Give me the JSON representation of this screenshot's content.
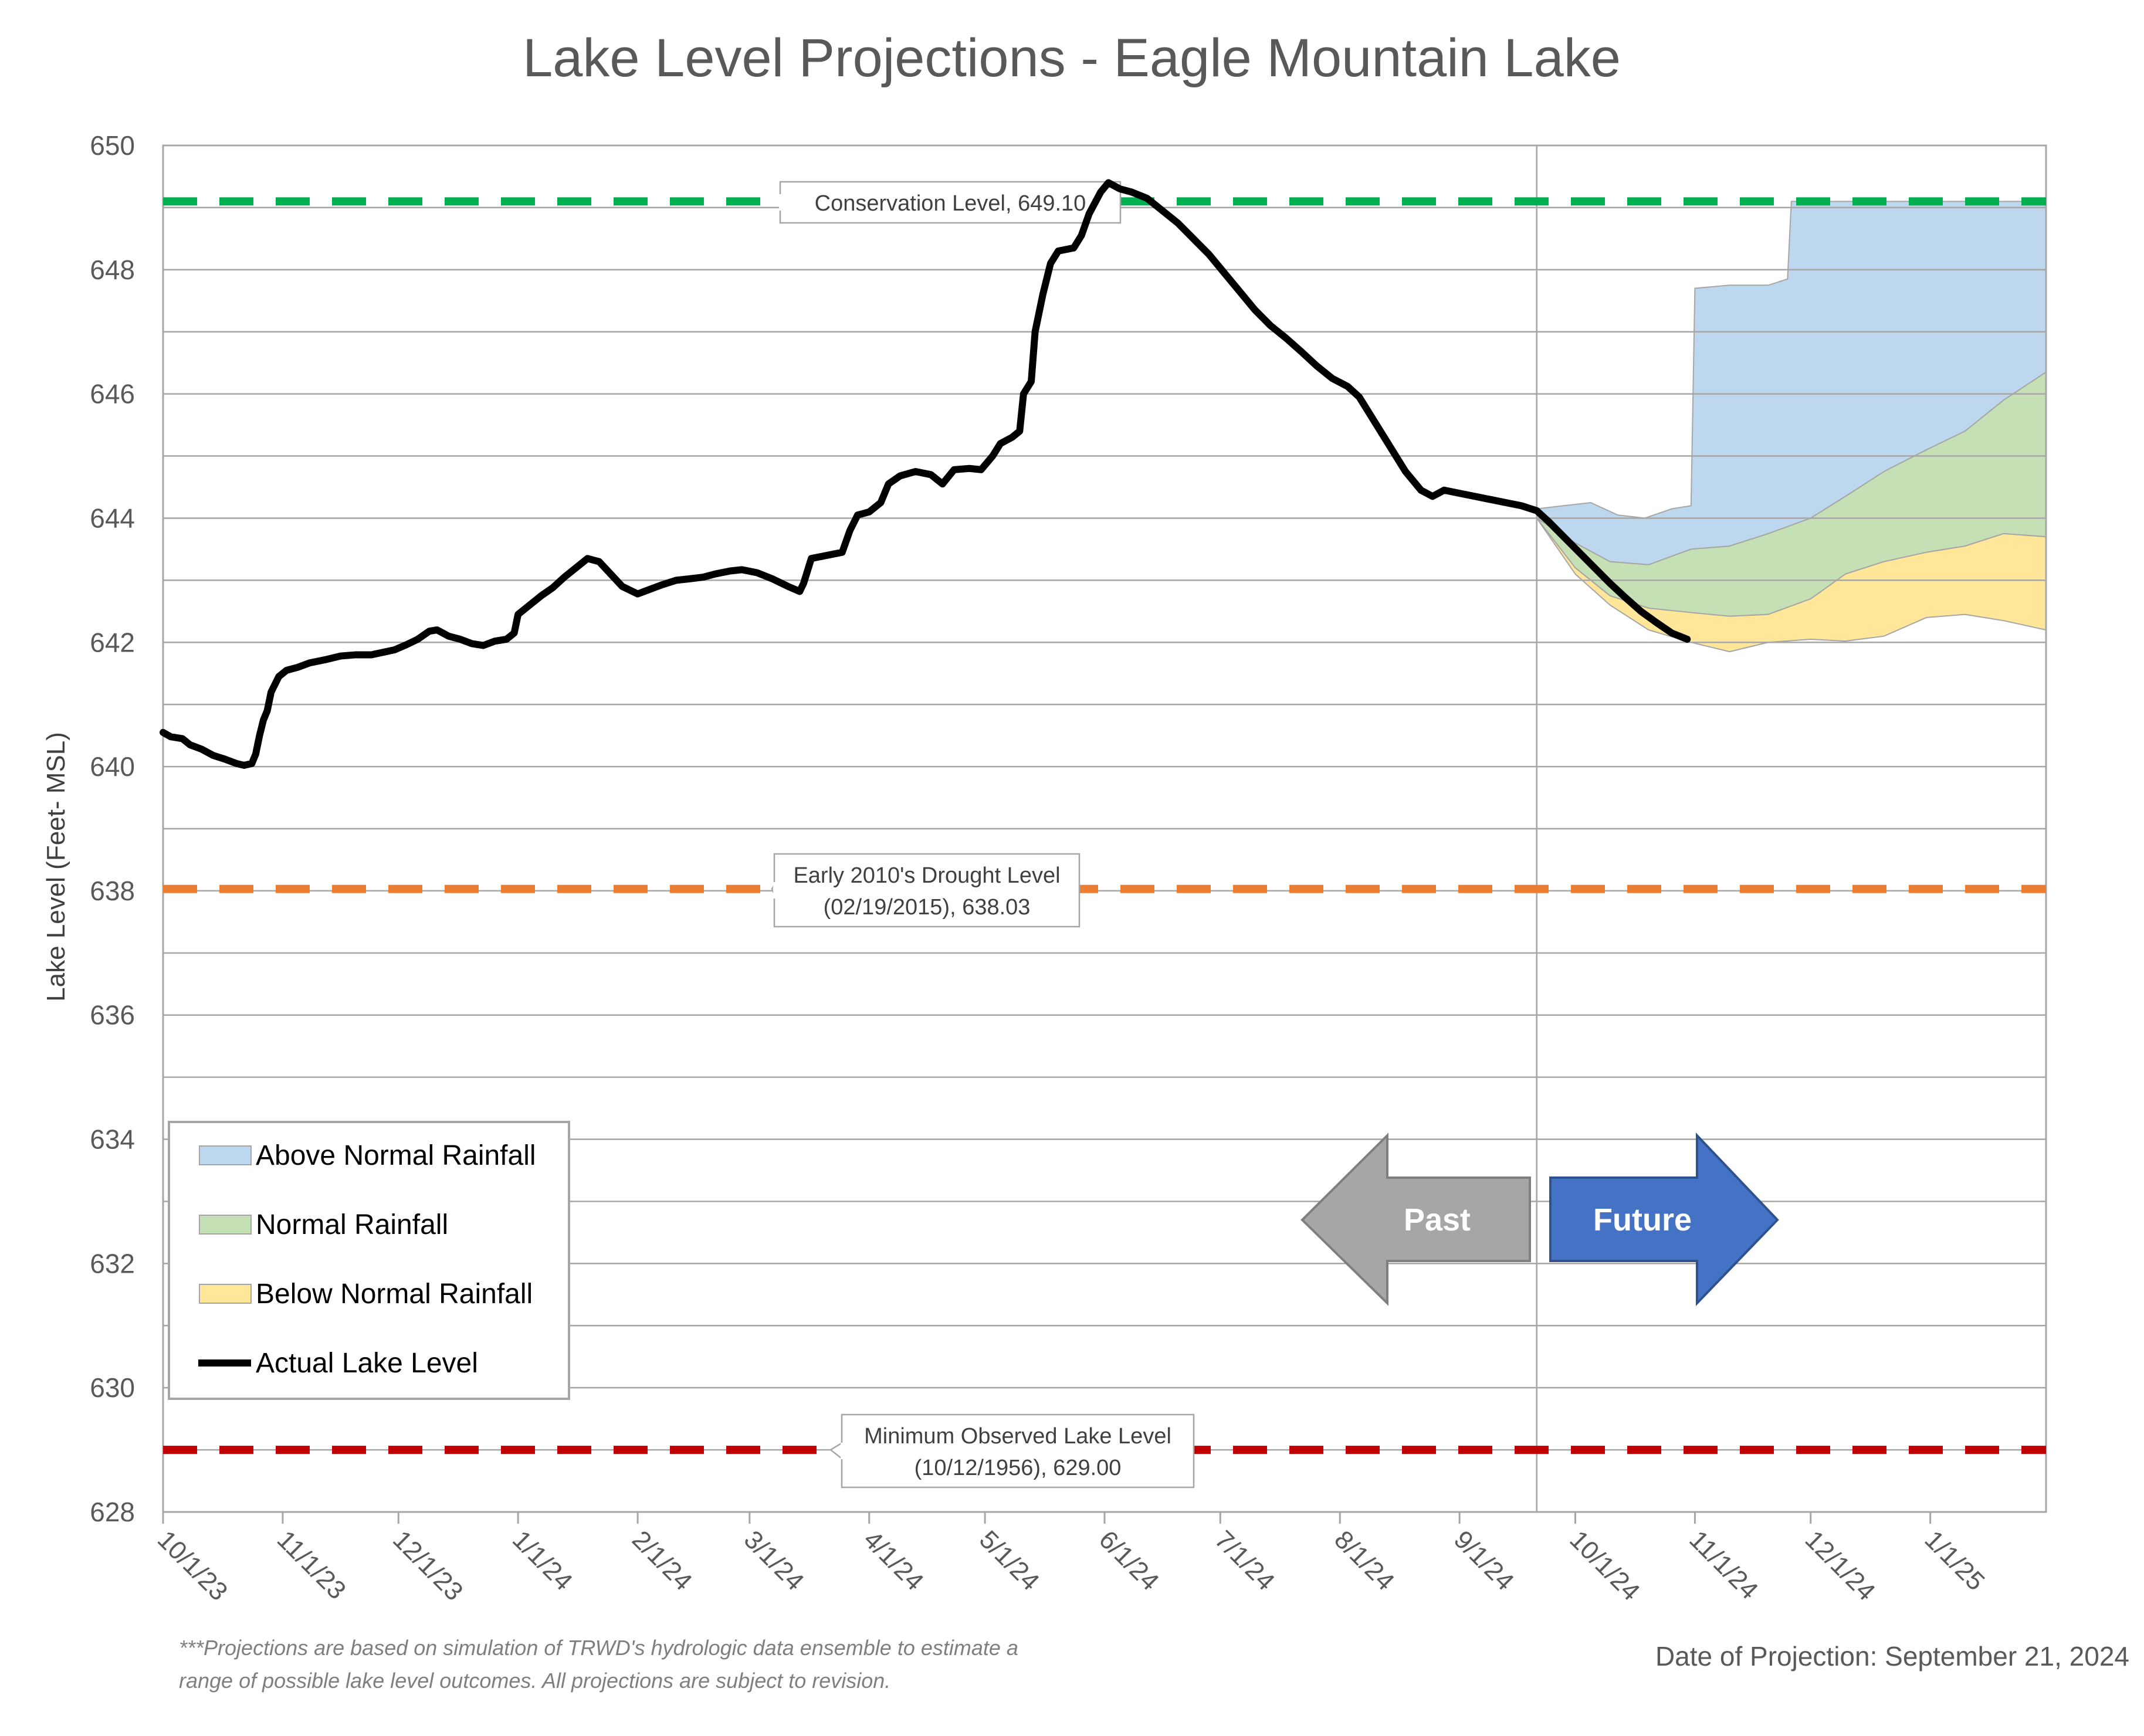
{
  "chart_data": {
    "type": "area",
    "title": "Lake Level Projections - Eagle Mountain Lake",
    "ylabel": "Lake Level (Feet- MSL)",
    "xlabel": "",
    "ylim": [
      628,
      650
    ],
    "yticks": [
      628,
      630,
      632,
      634,
      636,
      638,
      640,
      642,
      644,
      646,
      648,
      650
    ],
    "xlim": [
      "2023-10-01",
      "2025-01-31"
    ],
    "xticks": [
      {
        "date": "2023-10-01",
        "label": "10/1/23"
      },
      {
        "date": "2023-11-01",
        "label": "11/1/23"
      },
      {
        "date": "2023-12-01",
        "label": "12/1/23"
      },
      {
        "date": "2024-01-01",
        "label": "1/1/24"
      },
      {
        "date": "2024-02-01",
        "label": "2/1/24"
      },
      {
        "date": "2024-03-01",
        "label": "3/1/24"
      },
      {
        "date": "2024-04-01",
        "label": "4/1/24"
      },
      {
        "date": "2024-05-01",
        "label": "5/1/24"
      },
      {
        "date": "2024-06-01",
        "label": "6/1/24"
      },
      {
        "date": "2024-07-01",
        "label": "7/1/24"
      },
      {
        "date": "2024-08-01",
        "label": "8/1/24"
      },
      {
        "date": "2024-09-01",
        "label": "9/1/24"
      },
      {
        "date": "2024-10-01",
        "label": "10/1/24"
      },
      {
        "date": "2024-11-01",
        "label": "11/1/24"
      },
      {
        "date": "2024-12-01",
        "label": "12/1/24"
      },
      {
        "date": "2025-01-01",
        "label": "1/1/25"
      }
    ],
    "grid": true,
    "projection_date": "2024-09-21",
    "reference_lines": [
      {
        "name": "conservation",
        "value": 649.1,
        "label": "Conservation Level, 649.10",
        "color": "#00b050"
      },
      {
        "name": "drought",
        "value": 638.03,
        "label": "Early 2010's Drought Level (02/19/2015), 638.03",
        "label_lines": [
          "Early 2010's Drought Level",
          "(02/19/2015), 638.03"
        ],
        "color": "#ed7d31"
      },
      {
        "name": "minimum",
        "value": 629.0,
        "label": "Minimum Observed Lake Level (10/12/1956), 629.00",
        "label_lines": [
          "Minimum Observed Lake Level",
          "(10/12/1956), 629.00"
        ],
        "color": "#c00000"
      }
    ],
    "legend": {
      "position": "bottom-left",
      "items": [
        {
          "label": "Above Normal Rainfall",
          "color": "#bdd7ee",
          "kind": "area"
        },
        {
          "label": "Normal Rainfall",
          "color": "#c5e0b4",
          "kind": "area"
        },
        {
          "label": "Below Normal Rainfall",
          "color": "#ffe699",
          "kind": "area"
        },
        {
          "label": "Actual Lake Level",
          "color": "#000000",
          "kind": "line"
        }
      ]
    },
    "series": [
      {
        "name": "Actual Lake Level",
        "kind": "line",
        "color": "#000000",
        "points": [
          [
            "2023-10-01",
            640.55
          ],
          [
            "2023-10-03",
            640.48
          ],
          [
            "2023-10-06",
            640.45
          ],
          [
            "2023-10-08",
            640.35
          ],
          [
            "2023-10-11",
            640.28
          ],
          [
            "2023-10-14",
            640.18
          ],
          [
            "2023-10-17",
            640.12
          ],
          [
            "2023-10-20",
            640.05
          ],
          [
            "2023-10-22",
            640.02
          ],
          [
            "2023-10-24",
            640.05
          ],
          [
            "2023-10-25",
            640.2
          ],
          [
            "2023-10-26",
            640.5
          ],
          [
            "2023-10-27",
            640.75
          ],
          [
            "2023-10-28",
            640.9
          ],
          [
            "2023-10-29",
            641.2
          ],
          [
            "2023-10-31",
            641.45
          ],
          [
            "2023-11-02",
            641.55
          ],
          [
            "2023-11-05",
            641.6
          ],
          [
            "2023-11-08",
            641.67
          ],
          [
            "2023-11-12",
            641.72
          ],
          [
            "2023-11-16",
            641.78
          ],
          [
            "2023-11-20",
            641.8
          ],
          [
            "2023-11-24",
            641.8
          ],
          [
            "2023-11-27",
            641.84
          ],
          [
            "2023-11-30",
            641.88
          ],
          [
            "2023-12-03",
            641.96
          ],
          [
            "2023-12-06",
            642.05
          ],
          [
            "2023-12-09",
            642.18
          ],
          [
            "2023-12-11",
            642.2
          ],
          [
            "2023-12-14",
            642.1
          ],
          [
            "2023-12-17",
            642.05
          ],
          [
            "2023-12-20",
            641.98
          ],
          [
            "2023-12-23",
            641.95
          ],
          [
            "2023-12-26",
            642.02
          ],
          [
            "2023-12-29",
            642.05
          ],
          [
            "2023-12-31",
            642.15
          ],
          [
            "2024-01-01",
            642.45
          ],
          [
            "2024-01-04",
            642.6
          ],
          [
            "2024-01-07",
            642.75
          ],
          [
            "2024-01-10",
            642.88
          ],
          [
            "2024-01-13",
            643.05
          ],
          [
            "2024-01-16",
            643.2
          ],
          [
            "2024-01-19",
            643.35
          ],
          [
            "2024-01-22",
            643.3
          ],
          [
            "2024-01-25",
            643.1
          ],
          [
            "2024-01-28",
            642.9
          ],
          [
            "2024-02-01",
            642.78
          ],
          [
            "2024-02-04",
            642.85
          ],
          [
            "2024-02-07",
            642.92
          ],
          [
            "2024-02-11",
            643.0
          ],
          [
            "2024-02-14",
            643.02
          ],
          [
            "2024-02-18",
            643.05
          ],
          [
            "2024-02-21",
            643.1
          ],
          [
            "2024-02-25",
            643.15
          ],
          [
            "2024-02-28",
            643.17
          ],
          [
            "2024-03-03",
            643.12
          ],
          [
            "2024-03-07",
            643.02
          ],
          [
            "2024-03-11",
            642.9
          ],
          [
            "2024-03-14",
            642.82
          ],
          [
            "2024-03-15",
            642.95
          ],
          [
            "2024-03-17",
            643.35
          ],
          [
            "2024-03-21",
            643.4
          ],
          [
            "2024-03-25",
            643.45
          ],
          [
            "2024-03-27",
            643.8
          ],
          [
            "2024-03-29",
            644.05
          ],
          [
            "2024-04-01",
            644.1
          ],
          [
            "2024-04-04",
            644.25
          ],
          [
            "2024-04-06",
            644.55
          ],
          [
            "2024-04-09",
            644.68
          ],
          [
            "2024-04-13",
            644.75
          ],
          [
            "2024-04-17",
            644.7
          ],
          [
            "2024-04-20",
            644.55
          ],
          [
            "2024-04-23",
            644.78
          ],
          [
            "2024-04-27",
            644.8
          ],
          [
            "2024-04-30",
            644.78
          ],
          [
            "2024-05-03",
            645.0
          ],
          [
            "2024-05-05",
            645.2
          ],
          [
            "2024-05-08",
            645.3
          ],
          [
            "2024-05-10",
            645.4
          ],
          [
            "2024-05-11",
            646.0
          ],
          [
            "2024-05-13",
            646.2
          ],
          [
            "2024-05-14",
            647.0
          ],
          [
            "2024-05-16",
            647.6
          ],
          [
            "2024-05-18",
            648.1
          ],
          [
            "2024-05-20",
            648.3
          ],
          [
            "2024-05-24",
            648.35
          ],
          [
            "2024-05-26",
            648.55
          ],
          [
            "2024-05-28",
            648.9
          ],
          [
            "2024-05-31",
            649.25
          ],
          [
            "2024-06-02",
            649.4
          ],
          [
            "2024-06-05",
            649.3
          ],
          [
            "2024-06-08",
            649.25
          ],
          [
            "2024-06-12",
            649.15
          ],
          [
            "2024-06-16",
            648.95
          ],
          [
            "2024-06-20",
            648.75
          ],
          [
            "2024-06-24",
            648.5
          ],
          [
            "2024-06-28",
            648.25
          ],
          [
            "2024-07-02",
            647.95
          ],
          [
            "2024-07-06",
            647.65
          ],
          [
            "2024-07-10",
            647.35
          ],
          [
            "2024-07-14",
            647.1
          ],
          [
            "2024-07-18",
            646.9
          ],
          [
            "2024-07-22",
            646.68
          ],
          [
            "2024-07-26",
            646.45
          ],
          [
            "2024-07-30",
            646.25
          ],
          [
            "2024-08-03",
            646.12
          ],
          [
            "2024-08-06",
            645.95
          ],
          [
            "2024-08-10",
            645.55
          ],
          [
            "2024-08-14",
            645.15
          ],
          [
            "2024-08-18",
            644.75
          ],
          [
            "2024-08-22",
            644.45
          ],
          [
            "2024-08-25",
            644.35
          ],
          [
            "2024-08-28",
            644.45
          ],
          [
            "2024-09-01",
            644.4
          ],
          [
            "2024-09-05",
            644.35
          ],
          [
            "2024-09-09",
            644.3
          ],
          [
            "2024-09-13",
            644.25
          ],
          [
            "2024-09-17",
            644.2
          ],
          [
            "2024-09-21",
            644.12
          ],
          [
            "2024-09-24",
            643.95
          ],
          [
            "2024-09-28",
            643.7
          ],
          [
            "2024-10-02",
            643.45
          ],
          [
            "2024-10-06",
            643.2
          ],
          [
            "2024-10-10",
            642.95
          ],
          [
            "2024-10-14",
            642.72
          ],
          [
            "2024-10-18",
            642.5
          ],
          [
            "2024-10-22",
            642.32
          ],
          [
            "2024-10-26",
            642.15
          ],
          [
            "2024-10-30",
            642.05
          ]
        ]
      },
      {
        "name": "Above Normal Rainfall",
        "kind": "band",
        "color": "#bdd7ee",
        "upper": [
          [
            "2024-09-21",
            644.15
          ],
          [
            "2024-09-28",
            644.2
          ],
          [
            "2024-10-05",
            644.25
          ],
          [
            "2024-10-12",
            644.05
          ],
          [
            "2024-10-19",
            644.0
          ],
          [
            "2024-10-26",
            644.15
          ],
          [
            "2024-10-31",
            644.2
          ],
          [
            "2024-11-01",
            647.7
          ],
          [
            "2024-11-10",
            647.75
          ],
          [
            "2024-11-20",
            647.75
          ],
          [
            "2024-11-25",
            647.85
          ],
          [
            "2024-11-26",
            649.1
          ],
          [
            "2024-12-10",
            649.1
          ],
          [
            "2024-12-31",
            649.1
          ],
          [
            "2025-01-31",
            649.1
          ]
        ],
        "lower": [
          [
            "2024-09-21",
            644.0
          ],
          [
            "2024-10-01",
            643.6
          ],
          [
            "2024-10-10",
            643.3
          ],
          [
            "2024-10-20",
            643.25
          ],
          [
            "2024-10-31",
            643.5
          ],
          [
            "2024-11-10",
            643.55
          ],
          [
            "2024-11-20",
            643.75
          ],
          [
            "2024-12-01",
            644.0
          ],
          [
            "2024-12-10",
            644.35
          ],
          [
            "2024-12-20",
            644.75
          ],
          [
            "2024-12-31",
            645.1
          ],
          [
            "2025-01-10",
            645.4
          ],
          [
            "2025-01-20",
            645.9
          ],
          [
            "2025-01-31",
            646.35
          ]
        ]
      },
      {
        "name": "Normal Rainfall",
        "kind": "band",
        "color": "#c5e0b4",
        "upper": [
          [
            "2024-09-21",
            644.0
          ],
          [
            "2024-10-01",
            643.6
          ],
          [
            "2024-10-10",
            643.3
          ],
          [
            "2024-10-20",
            643.25
          ],
          [
            "2024-10-31",
            643.5
          ],
          [
            "2024-11-10",
            643.55
          ],
          [
            "2024-11-20",
            643.75
          ],
          [
            "2024-12-01",
            644.0
          ],
          [
            "2024-12-10",
            644.35
          ],
          [
            "2024-12-20",
            644.75
          ],
          [
            "2024-12-31",
            645.1
          ],
          [
            "2025-01-10",
            645.4
          ],
          [
            "2025-01-20",
            645.9
          ],
          [
            "2025-01-31",
            646.35
          ]
        ],
        "lower": [
          [
            "2024-09-21",
            644.0
          ],
          [
            "2024-10-01",
            643.2
          ],
          [
            "2024-10-10",
            642.75
          ],
          [
            "2024-10-20",
            642.55
          ],
          [
            "2024-10-31",
            642.48
          ],
          [
            "2024-11-10",
            642.42
          ],
          [
            "2024-11-20",
            642.45
          ],
          [
            "2024-12-01",
            642.7
          ],
          [
            "2024-12-10",
            643.1
          ],
          [
            "2024-12-20",
            643.3
          ],
          [
            "2024-12-31",
            643.45
          ],
          [
            "2025-01-10",
            643.55
          ],
          [
            "2025-01-20",
            643.75
          ],
          [
            "2025-01-31",
            643.7
          ]
        ]
      },
      {
        "name": "Below Normal Rainfall",
        "kind": "band",
        "color": "#ffe699",
        "upper": [
          [
            "2024-09-21",
            644.0
          ],
          [
            "2024-10-01",
            643.2
          ],
          [
            "2024-10-10",
            642.75
          ],
          [
            "2024-10-20",
            642.55
          ],
          [
            "2024-10-31",
            642.48
          ],
          [
            "2024-11-10",
            642.42
          ],
          [
            "2024-11-20",
            642.45
          ],
          [
            "2024-12-01",
            642.7
          ],
          [
            "2024-12-10",
            643.1
          ],
          [
            "2024-12-20",
            643.3
          ],
          [
            "2024-12-31",
            643.45
          ],
          [
            "2025-01-10",
            643.55
          ],
          [
            "2025-01-20",
            643.75
          ],
          [
            "2025-01-31",
            643.7
          ]
        ],
        "lower": [
          [
            "2024-09-21",
            644.0
          ],
          [
            "2024-10-01",
            643.1
          ],
          [
            "2024-10-10",
            642.6
          ],
          [
            "2024-10-20",
            642.2
          ],
          [
            "2024-10-31",
            642.0
          ],
          [
            "2024-11-10",
            641.85
          ],
          [
            "2024-11-20",
            642.0
          ],
          [
            "2024-12-01",
            642.05
          ],
          [
            "2024-12-10",
            642.02
          ],
          [
            "2024-12-20",
            642.1
          ],
          [
            "2024-12-31",
            642.4
          ],
          [
            "2025-01-10",
            642.45
          ],
          [
            "2025-01-20",
            642.35
          ],
          [
            "2025-01-31",
            642.2
          ]
        ]
      }
    ],
    "annotations": {
      "past_arrow": {
        "label": "Past",
        "color": "#a6a6a6"
      },
      "future_arrow": {
        "label": "Future",
        "color": "#4472c4"
      }
    },
    "footnote_lines": [
      "***Projections are based on simulation of TRWD's hydrologic data ensemble to estimate a",
      "range of possible lake level outcomes.  All projections are subject to revision."
    ],
    "projection_label": "Date of Projection: September 21, 2024"
  }
}
